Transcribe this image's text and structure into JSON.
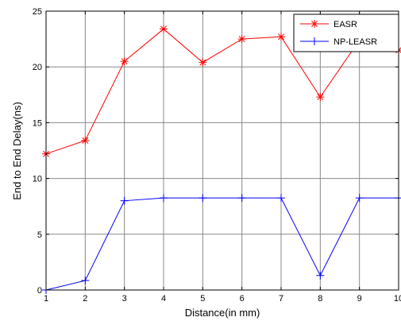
{
  "chart_data": {
    "type": "line",
    "xlabel": "Distance(in mm)",
    "ylabel": "End to End Delay(ns)",
    "xlim": [
      1,
      10
    ],
    "ylim": [
      0,
      25
    ],
    "x_ticks": [
      "1",
      "2",
      "3",
      "4",
      "5",
      "6",
      "7",
      "8",
      "9",
      "10"
    ],
    "y_ticks": [
      "0",
      "5",
      "10",
      "15",
      "20",
      "25"
    ],
    "grid": true,
    "legend_position": "top-right",
    "x": [
      1,
      2,
      3,
      4,
      5,
      6,
      7,
      8,
      9,
      10
    ],
    "series": [
      {
        "name": "EASR",
        "color": "#ff0000",
        "marker": "asterisk",
        "values": [
          12.2,
          13.4,
          20.5,
          23.4,
          20.4,
          22.5,
          22.7,
          17.3,
          22.4,
          21.5
        ]
      },
      {
        "name": "NP-LEASR",
        "color": "#0000ff",
        "marker": "plus",
        "values": [
          0.0,
          0.85,
          8.0,
          8.25,
          8.25,
          8.25,
          8.25,
          1.3,
          8.25,
          8.25
        ]
      }
    ]
  }
}
